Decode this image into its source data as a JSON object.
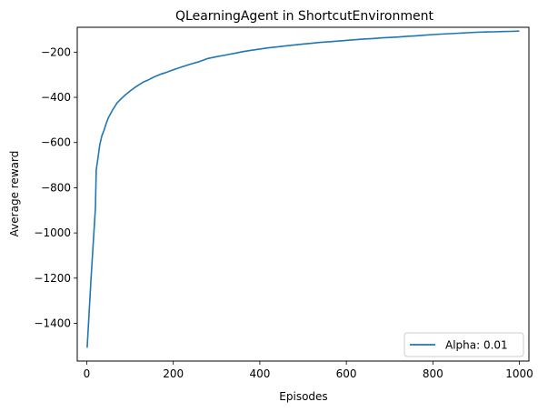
{
  "chart_data": {
    "type": "line",
    "title": "QLearningAgent in ShortcutEnvironment",
    "xlabel": "Episodes",
    "ylabel": "Average reward",
    "xlim": [
      -22,
      1022
    ],
    "ylim": [
      -1567,
      -90
    ],
    "xticks": [
      0,
      200,
      400,
      600,
      800,
      1000
    ],
    "xtick_labels": [
      "0",
      "200",
      "400",
      "600",
      "800",
      "1000"
    ],
    "yticks": [
      -1400,
      -1200,
      -1000,
      -800,
      -600,
      -400,
      -200
    ],
    "ytick_labels": [
      "−1400",
      "−1200",
      "−1000",
      "−800",
      "−600",
      "−400",
      "−200"
    ],
    "grid": false,
    "legend_position": "lower right",
    "series": [
      {
        "name": "Alpha: 0.01",
        "color": "#1f77b4",
        "x": [
          1,
          10,
          20,
          22,
          25,
          30,
          35,
          40,
          45,
          50,
          60,
          70,
          80,
          90,
          100,
          110,
          120,
          130,
          140,
          150,
          160,
          170,
          180,
          190,
          200,
          220,
          240,
          260,
          280,
          300,
          320,
          340,
          360,
          380,
          400,
          420,
          440,
          460,
          480,
          500,
          520,
          540,
          560,
          580,
          600,
          620,
          640,
          660,
          680,
          700,
          720,
          740,
          760,
          780,
          800,
          820,
          840,
          860,
          880,
          900,
          920,
          940,
          960,
          980,
          1000
        ],
        "y": [
          -1508,
          -1200,
          -890,
          -720,
          -680,
          -610,
          -570,
          -545,
          -515,
          -490,
          -455,
          -425,
          -405,
          -388,
          -372,
          -358,
          -345,
          -333,
          -325,
          -315,
          -306,
          -298,
          -292,
          -285,
          -278,
          -265,
          -253,
          -242,
          -228,
          -220,
          -213,
          -206,
          -198,
          -192,
          -186,
          -181,
          -177,
          -172,
          -168,
          -164,
          -161,
          -157,
          -154,
          -151,
          -148,
          -145,
          -142,
          -140,
          -137,
          -135,
          -133,
          -130,
          -128,
          -125,
          -122,
          -120,
          -118,
          -116,
          -114,
          -112,
          -111,
          -110,
          -109,
          -108,
          -107
        ]
      }
    ]
  }
}
